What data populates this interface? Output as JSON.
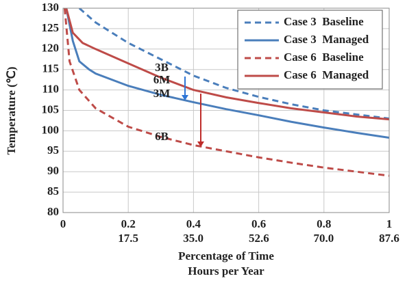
{
  "chart_data": {
    "type": "line",
    "xlabel": "Percentage of Time",
    "x2label": "Hours per Year",
    "ylabel": "Temperature (℃)",
    "xlim": [
      0,
      1
    ],
    "xticks": [
      0,
      0.2,
      0.4,
      0.6,
      0.8,
      1
    ],
    "x2lim": [
      0,
      87.6
    ],
    "x2ticks": [
      17.5,
      {
        "value": 35,
        "label": "35.0"
      },
      52.6,
      {
        "value": 70,
        "label": "70.0"
      },
      87.6
    ],
    "ylim": [
      80,
      130
    ],
    "yticks": [
      80,
      85,
      90,
      95,
      100,
      105,
      110,
      115,
      120,
      125,
      130
    ],
    "grid": true,
    "legend": "upper right",
    "series": [
      {
        "name": "Case 3  Baseline",
        "color": "#4a7ebb",
        "dashed": true,
        "x": [
          0.05,
          0.1,
          0.15,
          0.2,
          0.3,
          0.4,
          0.5,
          0.6,
          0.7,
          0.8,
          0.9,
          1.0
        ],
        "values": [
          130,
          126.5,
          124,
          121.5,
          117.5,
          113.5,
          110.5,
          108.3,
          106.5,
          105,
          104,
          103
        ]
      },
      {
        "name": "Case 3  Managed",
        "color": "#4a7ebb",
        "dashed": false,
        "x": [
          0.01,
          0.03,
          0.05,
          0.08,
          0.1,
          0.2,
          0.3,
          0.4,
          0.5,
          0.6,
          0.7,
          0.8,
          0.9,
          1.0
        ],
        "values": [
          130,
          122,
          117,
          115,
          114,
          111,
          108.8,
          107,
          105.3,
          103.8,
          102.2,
          100.8,
          99.5,
          98.3
        ]
      },
      {
        "name": "Case 6  Baseline",
        "color": "#be4b48",
        "dashed": true,
        "x": [
          0.005,
          0.02,
          0.05,
          0.1,
          0.2,
          0.3,
          0.4,
          0.5,
          0.6,
          0.7,
          0.8,
          0.9,
          1.0
        ],
        "values": [
          130,
          117,
          110,
          105.5,
          101,
          98.5,
          96.5,
          95,
          93.5,
          92.2,
          91,
          90,
          89
        ]
      },
      {
        "name": "Case 6  Managed",
        "color": "#be4b48",
        "dashed": false,
        "x": [
          0.01,
          0.03,
          0.06,
          0.1,
          0.2,
          0.3,
          0.4,
          0.5,
          0.6,
          0.7,
          0.8,
          0.9,
          1.0
        ],
        "values": [
          130,
          124,
          121.5,
          120,
          116.5,
          113,
          110,
          108.2,
          106.8,
          105.5,
          104.5,
          103.5,
          102.8
        ]
      }
    ],
    "annotations": [
      "3B",
      "6M",
      "3M",
      "6B"
    ]
  }
}
